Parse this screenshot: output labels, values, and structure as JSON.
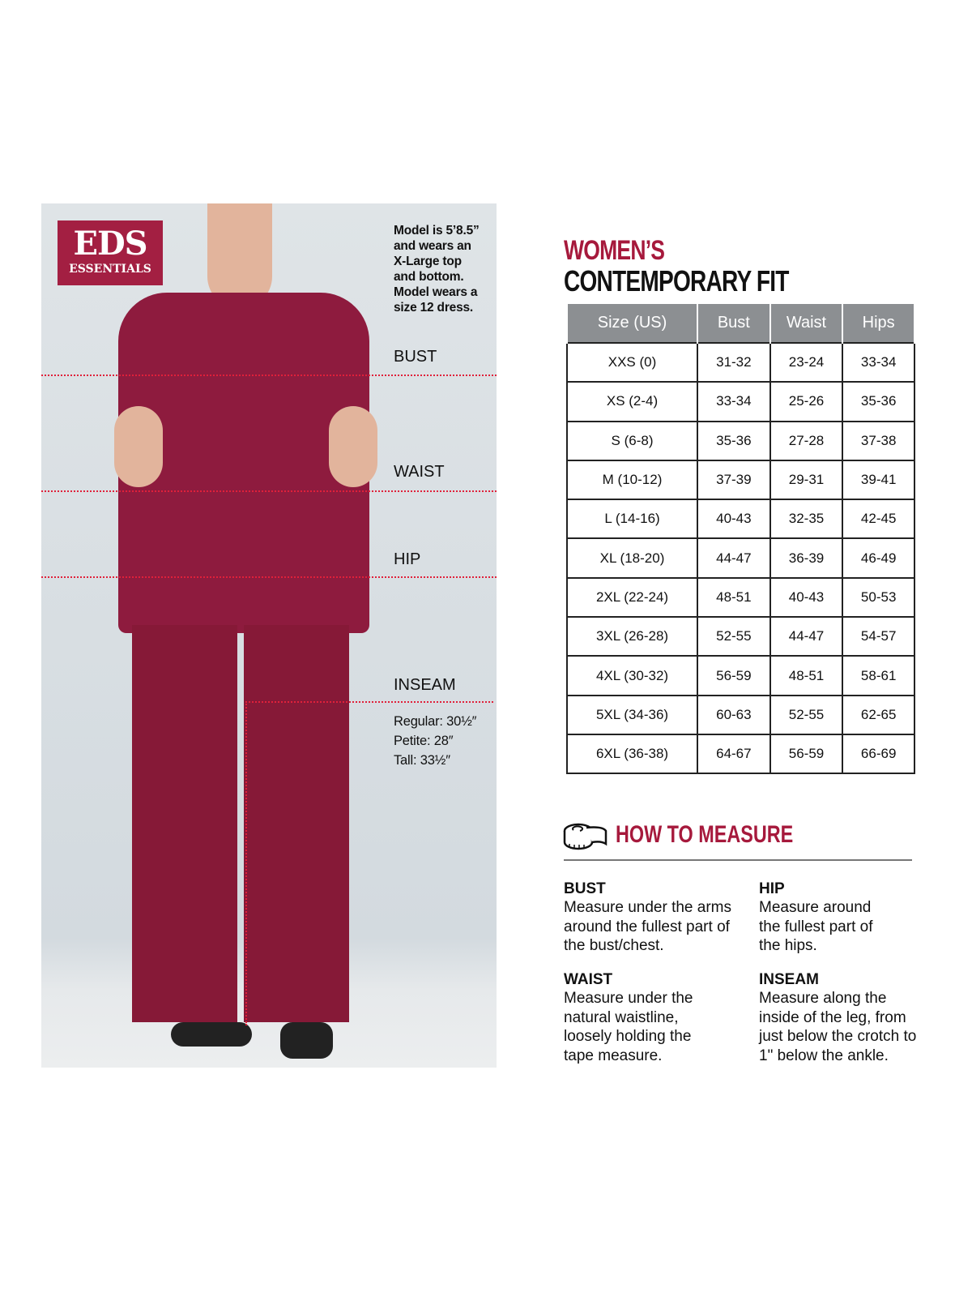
{
  "brand": {
    "logo_line1": "EDS",
    "logo_line2": "ESSENTIALS"
  },
  "model_note": [
    "Model is 5’8.5”",
    "and wears an",
    "X-Large top",
    "and bottom.",
    "Model wears a",
    "size 12 dress."
  ],
  "photo_labels": {
    "bust": "BUST",
    "waist": "WAIST",
    "hip": "HIP",
    "inseam": "INSEAM"
  },
  "inseam": [
    "Regular: 30½″",
    "Petite: 28″",
    "Tall: 33½″"
  ],
  "title": {
    "line1": "WOMEN’S",
    "line2": "CONTEMPORARY FIT"
  },
  "table": {
    "headers": [
      "Size (US)",
      "Bust",
      "Waist",
      "Hips"
    ],
    "rows": [
      [
        "XXS (0)",
        "31-32",
        "23-24",
        "33-34"
      ],
      [
        "XS (2-4)",
        "33-34",
        "25-26",
        "35-36"
      ],
      [
        "S (6-8)",
        "35-36",
        "27-28",
        "37-38"
      ],
      [
        "M (10-12)",
        "37-39",
        "29-31",
        "39-41"
      ],
      [
        "L (14-16)",
        "40-43",
        "32-35",
        "42-45"
      ],
      [
        "XL (18-20)",
        "44-47",
        "36-39",
        "46-49"
      ],
      [
        "2XL (22-24)",
        "48-51",
        "40-43",
        "50-53"
      ],
      [
        "3XL (26-28)",
        "52-55",
        "44-47",
        "54-57"
      ],
      [
        "4XL (30-32)",
        "56-59",
        "48-51",
        "58-61"
      ],
      [
        "5XL (34-36)",
        "60-63",
        "52-55",
        "62-65"
      ],
      [
        "6XL (36-38)",
        "64-67",
        "56-59",
        "66-69"
      ]
    ]
  },
  "how_to": {
    "title": "HOW TO MEASURE",
    "icon": "tape-measure-icon",
    "items": [
      {
        "heading": "BUST",
        "text": "Measure under the arms around the fullest part of the bust/chest."
      },
      {
        "heading": "HIP",
        "text": "Measure around the fullest part of the hips."
      },
      {
        "heading": "WAIST",
        "text": "Measure under the natural waistline, loosely holding the tape measure."
      },
      {
        "heading": "INSEAM",
        "text": "Measure along the inside of the leg, from just below the crotch to 1\" below the ankle."
      }
    ]
  },
  "colors": {
    "accent": "#a6193c",
    "header_grey": "#8c8f92",
    "scrubs": "#8e1b3e"
  }
}
